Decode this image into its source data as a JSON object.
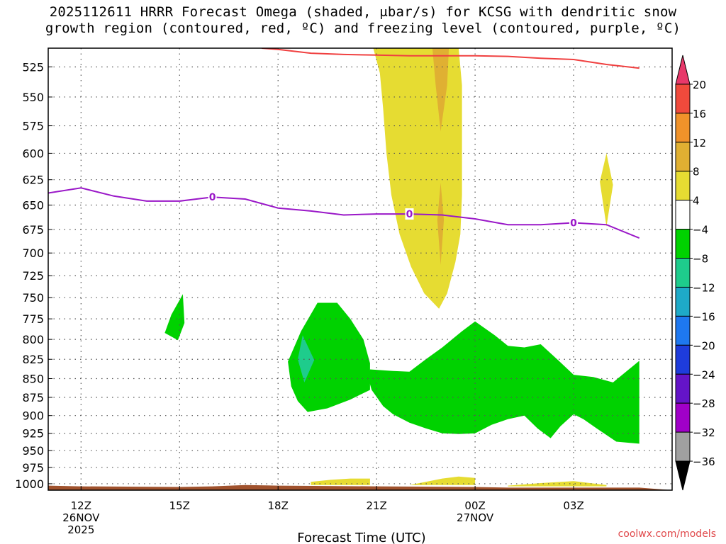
{
  "chart_data": {
    "type": "heatmap",
    "title_line1": "2025112611 HRRR Forecast Omega (shaded, μbar/s) for KCSG with dendritic snow",
    "title_line2": "growth region (contoured, red, ºC) and freezing level (contoured, purple, ºC)",
    "xlabel": "Forecast Time (UTC)",
    "ylabel": "",
    "credit": "coolwx.com/models",
    "x_range_hours": [
      -1,
      18
    ],
    "y_range_hpa": [
      510,
      1010
    ],
    "y_ticks": [
      525,
      550,
      575,
      600,
      625,
      650,
      675,
      700,
      725,
      750,
      775,
      800,
      825,
      850,
      875,
      900,
      925,
      950,
      975,
      1000
    ],
    "x_ticks": [
      {
        "hour": 0,
        "label": "12Z",
        "sub1": "26NOV",
        "sub2": "2025"
      },
      {
        "hour": 3,
        "label": "15Z",
        "sub1": "",
        "sub2": ""
      },
      {
        "hour": 6,
        "label": "18Z",
        "sub1": "",
        "sub2": ""
      },
      {
        "hour": 9,
        "label": "21Z",
        "sub1": "",
        "sub2": ""
      },
      {
        "hour": 12,
        "label": "00Z",
        "sub1": "27NOV",
        "sub2": ""
      },
      {
        "hour": 15,
        "label": "03Z",
        "sub1": "",
        "sub2": ""
      }
    ],
    "colorbar": {
      "labels": [
        "20",
        "16",
        "12",
        "8",
        "4",
        "−4",
        "−8",
        "−12",
        "−16",
        "−20",
        "−24",
        "−28",
        "−32",
        "−36"
      ],
      "colors": [
        "#e8386a",
        "#f04a3c",
        "#f0922a",
        "#e0b032",
        "#e6dc32",
        "#ffffff",
        "#00d200",
        "#1ecc8c",
        "#1eaac8",
        "#1e78f0",
        "#1e3cdc",
        "#6414c8",
        "#a000c8",
        "#a0a0a0",
        "#000000"
      ]
    },
    "freezing_level": {
      "label": "0",
      "label_hours": [
        4,
        10,
        15
      ],
      "points": [
        [
          -1,
          638
        ],
        [
          0,
          633
        ],
        [
          1,
          641
        ],
        [
          2,
          646
        ],
        [
          3,
          646
        ],
        [
          4,
          642
        ],
        [
          5,
          644
        ],
        [
          6,
          653
        ],
        [
          7,
          656
        ],
        [
          8,
          660
        ],
        [
          9,
          659
        ],
        [
          10,
          659
        ],
        [
          11,
          660
        ],
        [
          12,
          664
        ],
        [
          13,
          670
        ],
        [
          14,
          670
        ],
        [
          15,
          668
        ],
        [
          16,
          670
        ],
        [
          17,
          684
        ]
      ]
    },
    "dgz_line": {
      "points": [
        [
          5.5,
          510
        ],
        [
          6,
          511
        ],
        [
          7,
          514
        ],
        [
          8,
          515
        ],
        [
          9,
          515.5
        ],
        [
          10,
          516
        ],
        [
          11,
          516
        ],
        [
          12,
          516
        ],
        [
          13,
          516.5
        ],
        [
          14,
          518
        ],
        [
          15,
          519
        ],
        [
          16,
          523
        ],
        [
          17,
          526
        ]
      ]
    },
    "omega_regions": [
      {
        "value_class": "4",
        "color": "#e6dc32",
        "points": [
          [
            8.9,
            510
          ],
          [
            9.1,
            530
          ],
          [
            9.2,
            560
          ],
          [
            9.3,
            600
          ],
          [
            9.45,
            640
          ],
          [
            9.7,
            680
          ],
          [
            10.05,
            715
          ],
          [
            10.45,
            745
          ],
          [
            10.9,
            763
          ],
          [
            11.15,
            745
          ],
          [
            11.4,
            710
          ],
          [
            11.55,
            680
          ],
          [
            11.6,
            640
          ],
          [
            11.6,
            580
          ],
          [
            11.6,
            540
          ],
          [
            11.5,
            510
          ]
        ]
      },
      {
        "value_class": "8",
        "color": "#e0b032",
        "points": [
          [
            10.7,
            510
          ],
          [
            10.8,
            540
          ],
          [
            10.95,
            580
          ],
          [
            11.15,
            540
          ],
          [
            11.2,
            510
          ]
        ]
      },
      {
        "value_class": "8",
        "color": "#e0b032",
        "points": [
          [
            10.95,
            628
          ],
          [
            10.85,
            665
          ],
          [
            10.95,
            713
          ],
          [
            11.05,
            665
          ]
        ]
      },
      {
        "value_class": "4",
        "color": "#e6dc32",
        "points": [
          [
            16.0,
            600
          ],
          [
            15.8,
            627
          ],
          [
            16.0,
            672
          ],
          [
            16.2,
            630
          ]
        ]
      },
      {
        "value_class": "-4",
        "color": "#00d200",
        "points": [
          [
            3.1,
            746
          ],
          [
            2.75,
            770
          ],
          [
            2.55,
            792
          ],
          [
            2.95,
            801
          ],
          [
            3.15,
            780
          ]
        ]
      },
      {
        "value_class": "-4",
        "color": "#00d200",
        "points": [
          [
            7.2,
            756
          ],
          [
            6.7,
            790
          ],
          [
            6.3,
            828
          ],
          [
            6.4,
            860
          ],
          [
            6.6,
            880
          ],
          [
            6.9,
            895
          ],
          [
            7.5,
            890
          ],
          [
            8.2,
            878
          ],
          [
            8.8,
            865
          ],
          [
            8.8,
            830
          ],
          [
            8.6,
            800
          ],
          [
            8.2,
            775
          ],
          [
            7.8,
            756
          ]
        ]
      },
      {
        "value_class": "-8",
        "color": "#1ecc8c",
        "points": [
          [
            6.75,
            795
          ],
          [
            6.6,
            825
          ],
          [
            6.8,
            855
          ],
          [
            7.1,
            826
          ]
        ]
      },
      {
        "value_class": "-4",
        "color": "#00d200",
        "points": [
          [
            8.8,
            838
          ],
          [
            9.5,
            840
          ],
          [
            10.0,
            841
          ],
          [
            10.5,
            825
          ],
          [
            11.0,
            810
          ],
          [
            11.6,
            790
          ],
          [
            12.0,
            778
          ],
          [
            12.6,
            795
          ],
          [
            13.0,
            808
          ],
          [
            13.5,
            810
          ],
          [
            14.0,
            806
          ],
          [
            14.5,
            825
          ],
          [
            15.0,
            845
          ],
          [
            15.6,
            848
          ],
          [
            16.2,
            855
          ],
          [
            17.0,
            827
          ],
          [
            17.0,
            940
          ],
          [
            16.3,
            937
          ],
          [
            15.7,
            918
          ],
          [
            15.3,
            905
          ],
          [
            15.0,
            898
          ],
          [
            14.6,
            915
          ],
          [
            14.3,
            932
          ],
          [
            13.9,
            918
          ],
          [
            13.5,
            900
          ],
          [
            13.0,
            905
          ],
          [
            12.5,
            913
          ],
          [
            12.0,
            925
          ],
          [
            11.5,
            926
          ],
          [
            11.0,
            925
          ],
          [
            10.5,
            918
          ],
          [
            10.0,
            910
          ],
          [
            9.5,
            898
          ],
          [
            9.2,
            887
          ],
          [
            8.85,
            865
          ],
          [
            8.75,
            850
          ]
        ]
      },
      {
        "value_class": "4",
        "color": "#e6dc32",
        "points": [
          [
            7.0,
            997
          ],
          [
            7.6,
            994
          ],
          [
            8.2,
            992
          ],
          [
            8.8,
            992
          ],
          [
            8.8,
            1002
          ],
          [
            7.0,
            1002
          ]
        ]
      },
      {
        "value_class": "4",
        "color": "#e6dc32",
        "points": [
          [
            10.0,
            1002
          ],
          [
            10.5,
            997
          ],
          [
            11.0,
            992
          ],
          [
            11.5,
            989
          ],
          [
            12.0,
            991
          ],
          [
            12.0,
            1002
          ]
        ]
      },
      {
        "value_class": "4",
        "color": "#e6dc32",
        "points": [
          [
            13.0,
            1003
          ],
          [
            14.0,
            999
          ],
          [
            15.0,
            996
          ],
          [
            16.0,
            1002
          ],
          [
            16.0,
            1004
          ],
          [
            13.0,
            1004
          ]
        ]
      }
    ],
    "terrain": {
      "color": "#a0522d",
      "points": [
        [
          -1,
          1003
        ],
        [
          0,
          1004
        ],
        [
          3,
          1005
        ],
        [
          4,
          1004
        ],
        [
          5,
          1002
        ],
        [
          6,
          1003
        ],
        [
          9,
          1004
        ],
        [
          12,
          1005
        ],
        [
          13,
          1006
        ],
        [
          15,
          1006
        ],
        [
          17,
          1006
        ]
      ]
    }
  }
}
